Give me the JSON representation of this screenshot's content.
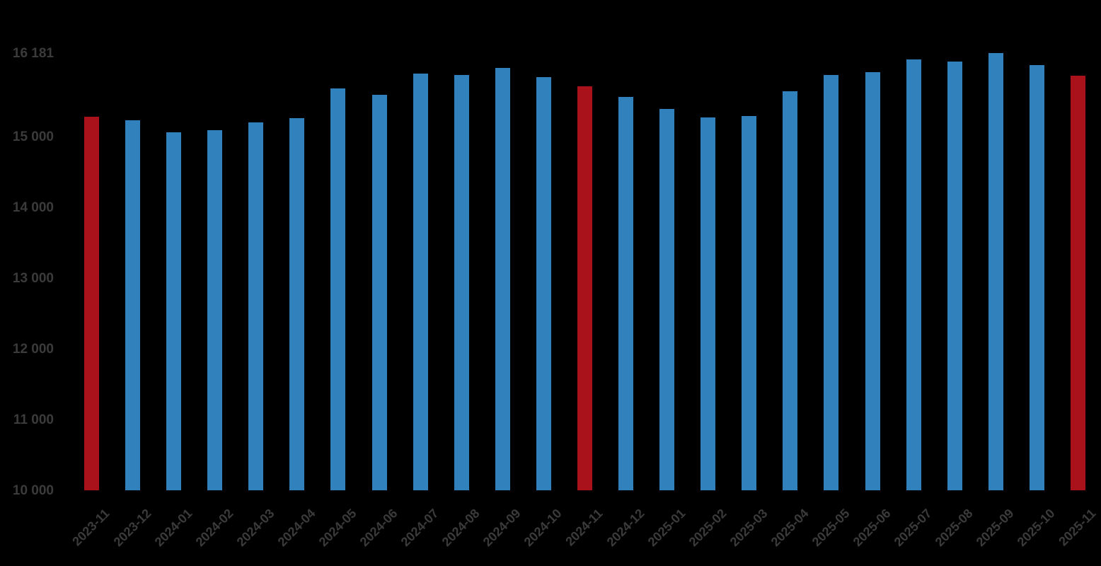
{
  "chart_data": {
    "type": "bar",
    "title": "",
    "xlabel": "",
    "ylabel": "",
    "grid": false,
    "legend": false,
    "background_color": "#000000",
    "label_color": "#3b3b3b",
    "bar_color": "#3181bd",
    "highlight_color": "#a9121b",
    "highlighted_categories": [
      "2023-11",
      "2024-11",
      "2025-11"
    ],
    "ylim": [
      10000,
      16181
    ],
    "y_ticks": [
      {
        "value": 10000,
        "label": "10 000"
      },
      {
        "value": 11000,
        "label": "11 000"
      },
      {
        "value": 12000,
        "label": "12 000"
      },
      {
        "value": 13000,
        "label": "13 000"
      },
      {
        "value": 14000,
        "label": "14 000"
      },
      {
        "value": 15000,
        "label": "15 000"
      },
      {
        "value": 16181,
        "label": "16 181"
      }
    ],
    "categories": [
      "2023-11",
      "2023-12",
      "2024-01",
      "2024-02",
      "2024-03",
      "2024-04",
      "2024-05",
      "2024-06",
      "2024-07",
      "2024-08",
      "2024-09",
      "2024-10",
      "2024-11",
      "2024-12",
      "2025-01",
      "2025-02",
      "2025-03",
      "2025-04",
      "2025-05",
      "2025-06",
      "2025-07",
      "2025-08",
      "2025-09",
      "2025-10",
      "2025-11"
    ],
    "values": [
      15280,
      15230,
      15060,
      15090,
      15200,
      15260,
      15680,
      15590,
      15890,
      15875,
      15970,
      15845,
      15715,
      15560,
      15390,
      15270,
      15295,
      15640,
      15870,
      15915,
      16090,
      16060,
      16181,
      16010,
      15860
    ]
  }
}
